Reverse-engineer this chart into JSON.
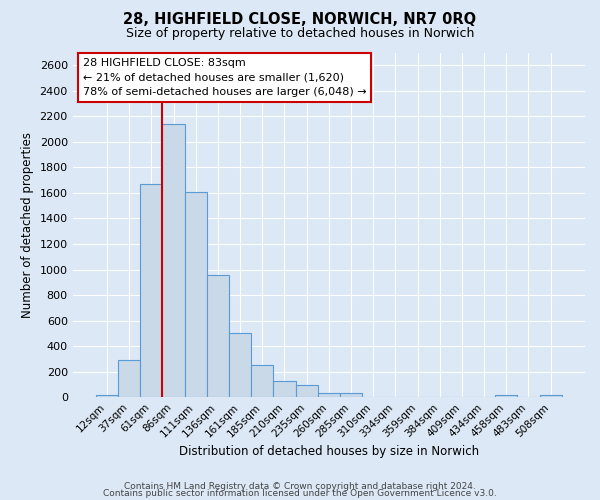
{
  "title": "28, HIGHFIELD CLOSE, NORWICH, NR7 0RQ",
  "subtitle": "Size of property relative to detached houses in Norwich",
  "xlabel": "Distribution of detached houses by size in Norwich",
  "ylabel": "Number of detached properties",
  "bar_labels": [
    "12sqm",
    "37sqm",
    "61sqm",
    "86sqm",
    "111sqm",
    "136sqm",
    "161sqm",
    "185sqm",
    "210sqm",
    "235sqm",
    "260sqm",
    "285sqm",
    "310sqm",
    "334sqm",
    "359sqm",
    "384sqm",
    "409sqm",
    "434sqm",
    "458sqm",
    "483sqm",
    "508sqm"
  ],
  "bar_values": [
    20,
    290,
    1670,
    2140,
    1610,
    960,
    505,
    250,
    125,
    95,
    30,
    30,
    5,
    5,
    5,
    5,
    5,
    5,
    20,
    5,
    20
  ],
  "bar_color": "#c9d9e8",
  "bar_edge_color": "#5b9bd5",
  "property_line_color": "#cc0000",
  "annotation_title": "28 HIGHFIELD CLOSE: 83sqm",
  "annotation_line1": "← 21% of detached houses are smaller (1,620)",
  "annotation_line2": "78% of semi-detached houses are larger (6,048) →",
  "annotation_box_color": "#ffffff",
  "annotation_box_edge": "#cc0000",
  "ylim": [
    0,
    2700
  ],
  "yticks": [
    0,
    200,
    400,
    600,
    800,
    1000,
    1200,
    1400,
    1600,
    1800,
    2000,
    2200,
    2400,
    2600
  ],
  "background_color": "#dce8f5",
  "plot_bg_color": "#dce8f5",
  "grid_color": "#ffffff",
  "footer1": "Contains HM Land Registry data © Crown copyright and database right 2024.",
  "footer2": "Contains public sector information licensed under the Open Government Licence v3.0."
}
